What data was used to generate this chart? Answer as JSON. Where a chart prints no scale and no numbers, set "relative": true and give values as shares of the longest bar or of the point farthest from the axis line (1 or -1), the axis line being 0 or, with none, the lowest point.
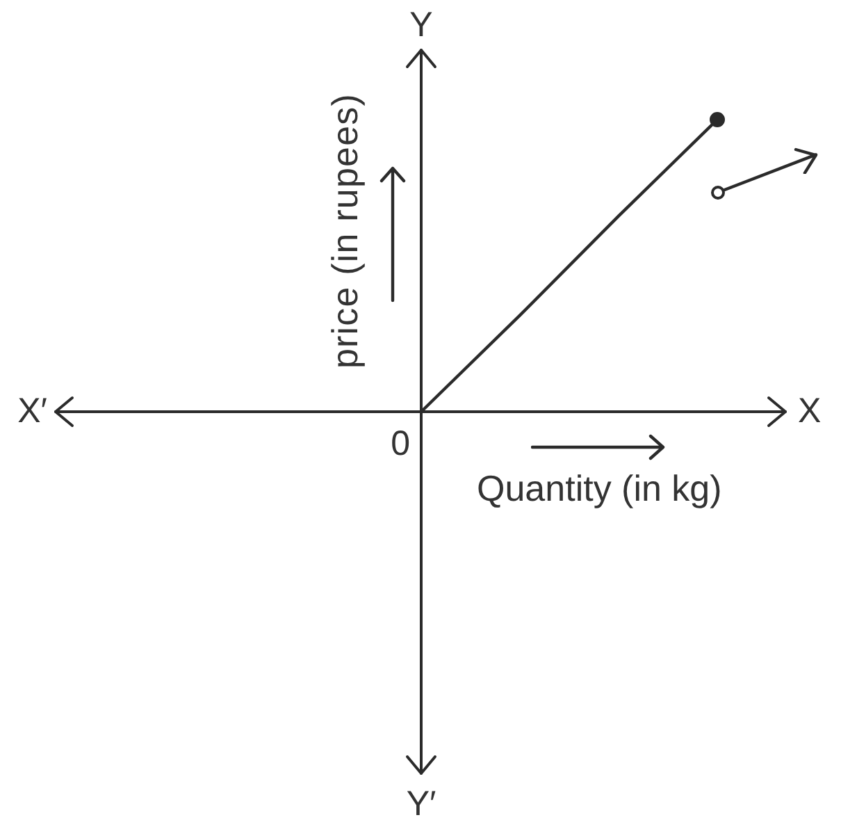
{
  "chart_data": {
    "type": "line",
    "relative": true,
    "xlabel": "Quantity (in kg)",
    "ylabel": "price (in rupees)",
    "annotations": [
      "X′",
      "X",
      "Y",
      "Y′",
      "0"
    ],
    "categories": [
      null,
      null,
      null,
      null,
      null
    ],
    "series": [
      {
        "color": "#2b2b2b",
        "values": [
          0,
          0.33,
          0.67,
          1,
          null
        ]
      },
      {
        "color": "#2b2b2b",
        "values": [
          null,
          null,
          null,
          0.75,
          0.88
        ]
      }
    ]
  }
}
